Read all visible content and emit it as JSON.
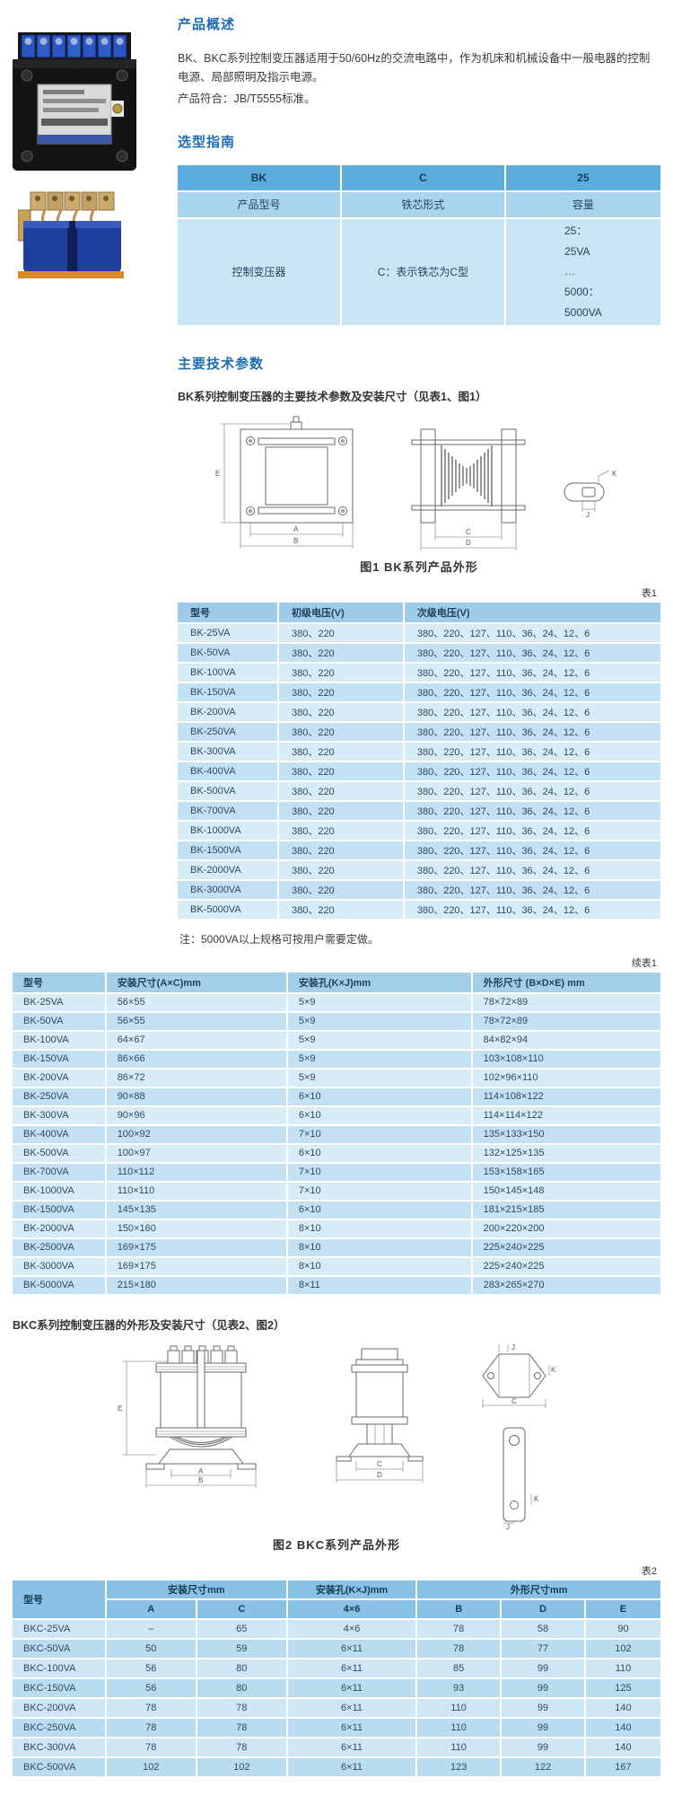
{
  "headings": {
    "overview": "产品概述",
    "selection": "选型指南",
    "parameters": "主要技术参数"
  },
  "overview": {
    "para": "BK、BKC系列控制变压器适用于50/60Hz的交流电路中，作为机床和机械设备中一般电器的控制电源、局部照明及指示电源。",
    "standard": "产品符合：JB/T5555标准。"
  },
  "photos": {
    "bk_alt": "BK系列控制变压器产品照片",
    "bkc_alt": "BKC系列控制变压器产品照片"
  },
  "selection": {
    "header": [
      "BK",
      "C",
      "25"
    ],
    "subheader": [
      "产品型号",
      "铁芯形式",
      "容量"
    ],
    "body_model": "控制变压器",
    "body_core": "C：表示铁芯为C型",
    "body_capacity": "25：\n25VA\n…\n5000：\n5000VA"
  },
  "bk": {
    "intro": "BK系列控制变压器的主要技术参数及安装尺寸（见表1、图1）",
    "fig1": {
      "caption": "图1 BK系列产品外形",
      "dims": {
        "e": "E",
        "a": "A",
        "b": "B",
        "c": "C",
        "d": "D",
        "k": "K",
        "j": "J"
      }
    },
    "table1": {
      "label": "表1",
      "columns": [
        "型号",
        "初级电压(V)",
        "次级电压(V)"
      ],
      "rows": [
        [
          "BK-25VA",
          "380、220",
          "380、220、127、110、36、24、12、6"
        ],
        [
          "BK-50VA",
          "380、220",
          "380、220、127、110、36、24、12、6"
        ],
        [
          "BK-100VA",
          "380、220",
          "380、220、127、110、36、24、12、6"
        ],
        [
          "BK-150VA",
          "380、220",
          "380、220、127、110、36、24、12、6"
        ],
        [
          "BK-200VA",
          "380、220",
          "380、220、127、110、36、24、12、6"
        ],
        [
          "BK-250VA",
          "380、220",
          "380、220、127、110、36、24、12、6"
        ],
        [
          "BK-300VA",
          "380、220",
          "380、220、127、110、36、24、12、6"
        ],
        [
          "BK-400VA",
          "380、220",
          "380、220、127、110、36、24、12、6"
        ],
        [
          "BK-500VA",
          "380、220",
          "380、220、127、110、36、24、12、6"
        ],
        [
          "BK-700VA",
          "380、220",
          "380、220、127、110、36、24、12、6"
        ],
        [
          "BK-1000VA",
          "380、220",
          "380、220、127、110、36、24、12、6"
        ],
        [
          "BK-1500VA",
          "380、220",
          "380、220、127、110、36、24、12、6"
        ],
        [
          "BK-2000VA",
          "380、220",
          "380、220、127、110、36、24、12、6"
        ],
        [
          "BK-3000VA",
          "380、220",
          "380、220、127、110、36、24、12、6"
        ],
        [
          "BK-5000VA",
          "380、220",
          "380、220、127、110、36、24、12、6"
        ]
      ],
      "note": "注：5000VA以上规格可按用户需要定做。"
    },
    "table1b": {
      "label": "续表1",
      "columns": [
        "型号",
        "安装尺寸(A×C)mm",
        "安装孔(K×J)mm",
        "外形尺寸 (B×D×E) mm"
      ],
      "rows": [
        [
          "BK-25VA",
          "56×55",
          "5×9",
          "78×72×89"
        ],
        [
          "BK-50VA",
          "56×55",
          "5×9",
          "78×72×89"
        ],
        [
          "BK-100VA",
          "64×67",
          "5×9",
          "84×82×94"
        ],
        [
          "BK-150VA",
          "86×66",
          "5×9",
          "103×108×110"
        ],
        [
          "BK-200VA",
          "86×72",
          "5×9",
          "102×96×110"
        ],
        [
          "BK-250VA",
          "90×88",
          "6×10",
          "114×108×122"
        ],
        [
          "BK-300VA",
          "90×96",
          "6×10",
          "114×114×122"
        ],
        [
          "BK-400VA",
          "100×92",
          "7×10",
          "135×133×150"
        ],
        [
          "BK-500VA",
          "100×97",
          "6×10",
          "132×125×135"
        ],
        [
          "BK-700VA",
          "110×112",
          "7×10",
          "153×158×165"
        ],
        [
          "BK-1000VA",
          "110×110",
          "7×10",
          "150×145×148"
        ],
        [
          "BK-1500VA",
          "145×135",
          "6×10",
          "181×215×185"
        ],
        [
          "BK-2000VA",
          "150×160",
          "8×10",
          "200×220×200"
        ],
        [
          "BK-2500VA",
          "169×175",
          "8×10",
          "225×240×225"
        ],
        [
          "BK-3000VA",
          "169×175",
          "8×10",
          "225×240×225"
        ],
        [
          "BK-5000VA",
          "215×180",
          "8×11",
          "283×265×270"
        ]
      ]
    }
  },
  "bkc": {
    "intro": "BKC系列控制变压器的外形及安装尺寸（见表2、图2）",
    "fig2": {
      "caption": "图2 BKC系列产品外形",
      "dims": {
        "e": "E",
        "a": "A",
        "b": "B",
        "c": "C",
        "d": "D",
        "j": "J",
        "k": "K",
        "c2": "C",
        "k2": "K",
        "j2": "J"
      }
    },
    "table2": {
      "label": "表2",
      "col_model": "型号",
      "group_mount": "安装尺寸mm",
      "group_hole": "安装孔(K×J)mm",
      "group_outline": "外形尺寸mm",
      "sub": [
        "A",
        "C",
        "4×6",
        "B",
        "D",
        "E"
      ],
      "rows": [
        [
          "BKC-25VA",
          "–",
          "65",
          "4×6",
          "78",
          "58",
          "90"
        ],
        [
          "BKC-50VA",
          "50",
          "59",
          "6×11",
          "78",
          "77",
          "102"
        ],
        [
          "BKC-100VA",
          "56",
          "80",
          "6×11",
          "85",
          "99",
          "110"
        ],
        [
          "BKC-150VA",
          "56",
          "80",
          "6×11",
          "93",
          "99",
          "125"
        ],
        [
          "BKC-200VA",
          "78",
          "78",
          "6×11",
          "110",
          "99",
          "140"
        ],
        [
          "BKC-250VA",
          "78",
          "78",
          "6×11",
          "110",
          "99",
          "140"
        ],
        [
          "BKC-300VA",
          "78",
          "78",
          "6×11",
          "110",
          "99",
          "140"
        ],
        [
          "BKC-500VA",
          "102",
          "102",
          "6×11",
          "123",
          "122",
          "167"
        ]
      ]
    }
  },
  "colors": {
    "heading_blue": "#1b6cb0",
    "table_header_blue": "#5caddd",
    "table_subheader_blue": "#a9d4ee",
    "row_light": "#d8ecf8",
    "row_dark": "#c3e1f2"
  }
}
